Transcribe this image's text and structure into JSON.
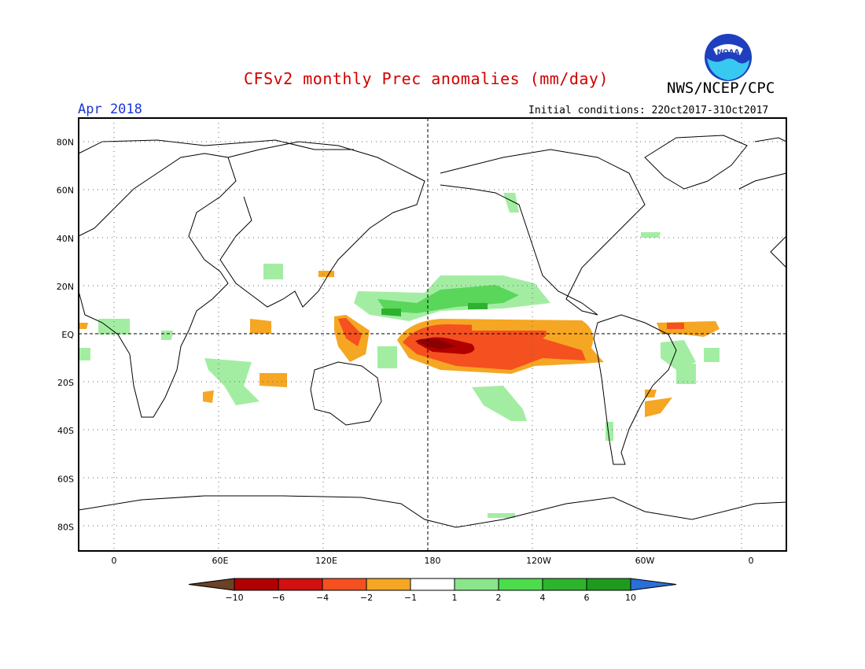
{
  "header": {
    "title": "CFSv2 monthly Prec anomalies (mm/day)",
    "org": "NWS/NCEP/CPC",
    "month": "Apr 2018",
    "initial_conditions": "Initial conditions: 22Oct2017-31Oct2017",
    "logo_text": "NOAA"
  },
  "axes": {
    "lat_labels": [
      "80N",
      "60N",
      "40N",
      "20N",
      "EQ",
      "20S",
      "40S",
      "60S",
      "80S"
    ],
    "lat_values": [
      80,
      60,
      40,
      20,
      0,
      -20,
      -40,
      -60,
      -80
    ],
    "lon_labels": [
      "0",
      "60E",
      "120E",
      "180",
      "120W",
      "60W",
      "0"
    ],
    "lon_values": [
      0,
      60,
      120,
      180,
      240,
      300,
      360
    ],
    "lon_range": [
      -20,
      380
    ],
    "lat_range": [
      -90,
      90
    ]
  },
  "colorbar": {
    "labels": [
      "-10",
      "-6",
      "-4",
      "-2",
      "-1",
      "1",
      "2",
      "4",
      "6",
      "10"
    ],
    "colors": [
      "#6b4226",
      "#b00000",
      "#d21010",
      "#f5501f",
      "#f5a623",
      "#ffffff",
      "#8be58b",
      "#4cdc4c",
      "#2db42d",
      "#1e9b1e",
      "#2a6fd9"
    ]
  },
  "anomalies": {
    "positive_colors": {
      "1": "#a3eda3",
      "2": "#5ad65a",
      "4": "#2fb12f"
    },
    "negative_colors": {
      "-1": "#f5a623",
      "-2": "#f5501f",
      "-4": "#d21010",
      "-6": "#8b0000"
    }
  }
}
